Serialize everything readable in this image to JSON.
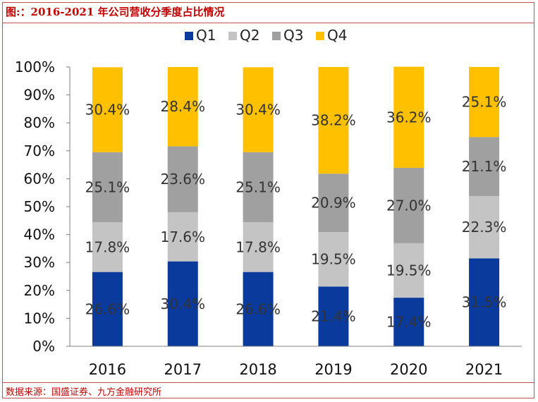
{
  "header": {
    "title": "图:：2016-2021 年公司营收分季度占比情况"
  },
  "footer": {
    "source": "数据来源：国盛证券、九方金融研究所"
  },
  "chart_data": {
    "type": "bar",
    "stacked": true,
    "categories": [
      "2016",
      "2017",
      "2018",
      "2019",
      "2020",
      "2021"
    ],
    "series": [
      {
        "name": "Q1",
        "color": "#0a3a9c",
        "values": [
          26.6,
          30.4,
          26.6,
          21.4,
          17.4,
          31.5
        ],
        "labels": [
          "26.6%",
          "30.4%",
          "26.6%",
          "21.4%",
          "17.4%",
          "31.5%"
        ]
      },
      {
        "name": "Q2",
        "color": "#c4c4c4",
        "values": [
          17.8,
          17.6,
          17.8,
          19.5,
          19.5,
          22.3
        ],
        "labels": [
          "17.8%",
          "17.6%",
          "17.8%",
          "19.5%",
          "19.5%",
          "22.3%"
        ]
      },
      {
        "name": "Q3",
        "color": "#a0a0a0",
        "values": [
          25.1,
          23.6,
          25.1,
          20.9,
          27.0,
          21.1
        ],
        "labels": [
          "25.1%",
          "23.6%",
          "25.1%",
          "20.9%",
          "27.0%",
          "21.1%"
        ]
      },
      {
        "name": "Q4",
        "color": "#ffc000",
        "values": [
          30.4,
          28.4,
          30.4,
          38.2,
          36.2,
          25.1
        ],
        "labels": [
          "30.4%",
          "28.4%",
          "30.4%",
          "38.2%",
          "36.2%",
          "25.1%"
        ]
      }
    ],
    "ylim": [
      0,
      100
    ],
    "yticks": [
      "0%",
      "10%",
      "20%",
      "30%",
      "40%",
      "50%",
      "60%",
      "70%",
      "80%",
      "90%",
      "100%"
    ],
    "legend_position": "top-center",
    "grid": false
  }
}
